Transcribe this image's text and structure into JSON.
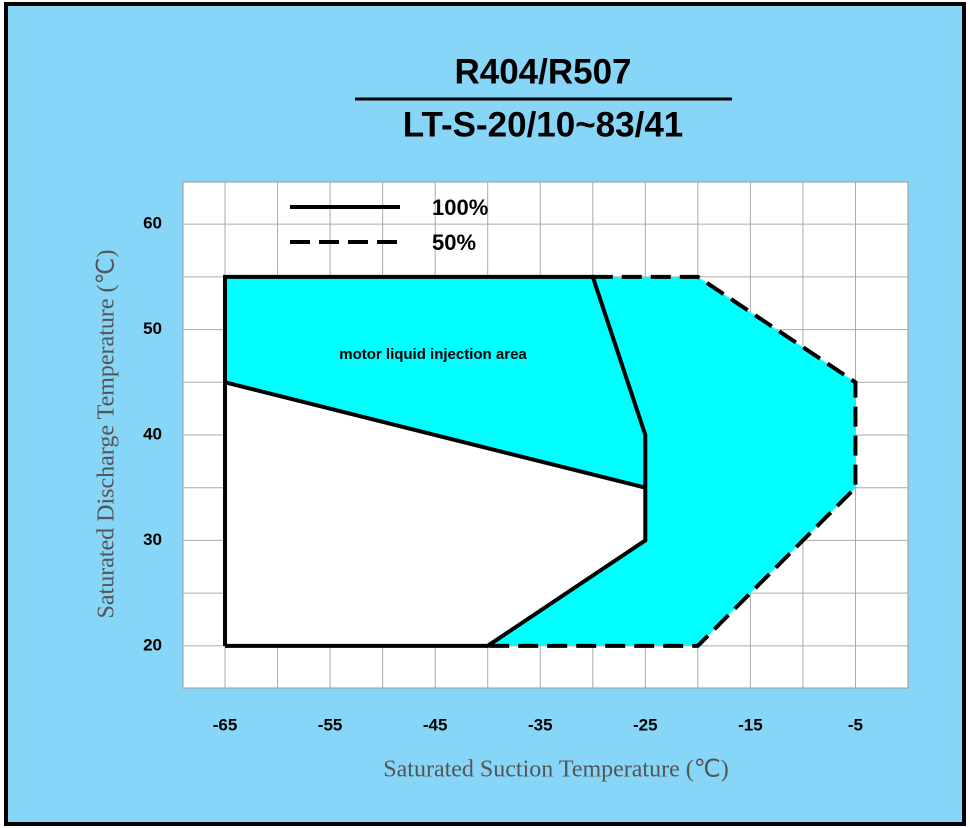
{
  "chart_data": {
    "type": "line",
    "title": "R404/R507",
    "subtitle": "LT-S-20/10~83/41",
    "x_label": "Saturated Suction Temperature (℃)",
    "y_label": "Saturated Discharge Temperature (℃)",
    "annotation": "motor liquid injection area",
    "xlim": [
      -69,
      0
    ],
    "ylim": [
      16,
      64
    ],
    "xticks": [
      -65,
      -55,
      -45,
      -35,
      -25,
      -15,
      -5
    ],
    "xminor": [
      -60,
      -50,
      -40,
      -30,
      -20,
      -10
    ],
    "yticks": [
      20,
      30,
      40,
      50,
      60
    ],
    "yminor": [
      25,
      35,
      45,
      55
    ],
    "grid": true,
    "fill_color": "#00ffff",
    "series": [
      {
        "name": "100%",
        "color": "#000000",
        "dashed": false,
        "x": [
          -65,
          -65,
          -30,
          -25,
          -25,
          -40,
          -65
        ],
        "values": [
          20,
          55,
          55,
          40,
          30,
          20,
          20
        ]
      },
      {
        "name": "50%",
        "color": "#000000",
        "dashed": true,
        "x": [
          -30,
          -20,
          -5,
          -5,
          -20,
          -40
        ],
        "values": [
          55,
          55,
          45,
          35,
          20,
          20
        ]
      },
      {
        "color": "#000000",
        "dashed": false,
        "x": [
          -65,
          -25
        ],
        "values": [
          45,
          35
        ]
      }
    ]
  }
}
